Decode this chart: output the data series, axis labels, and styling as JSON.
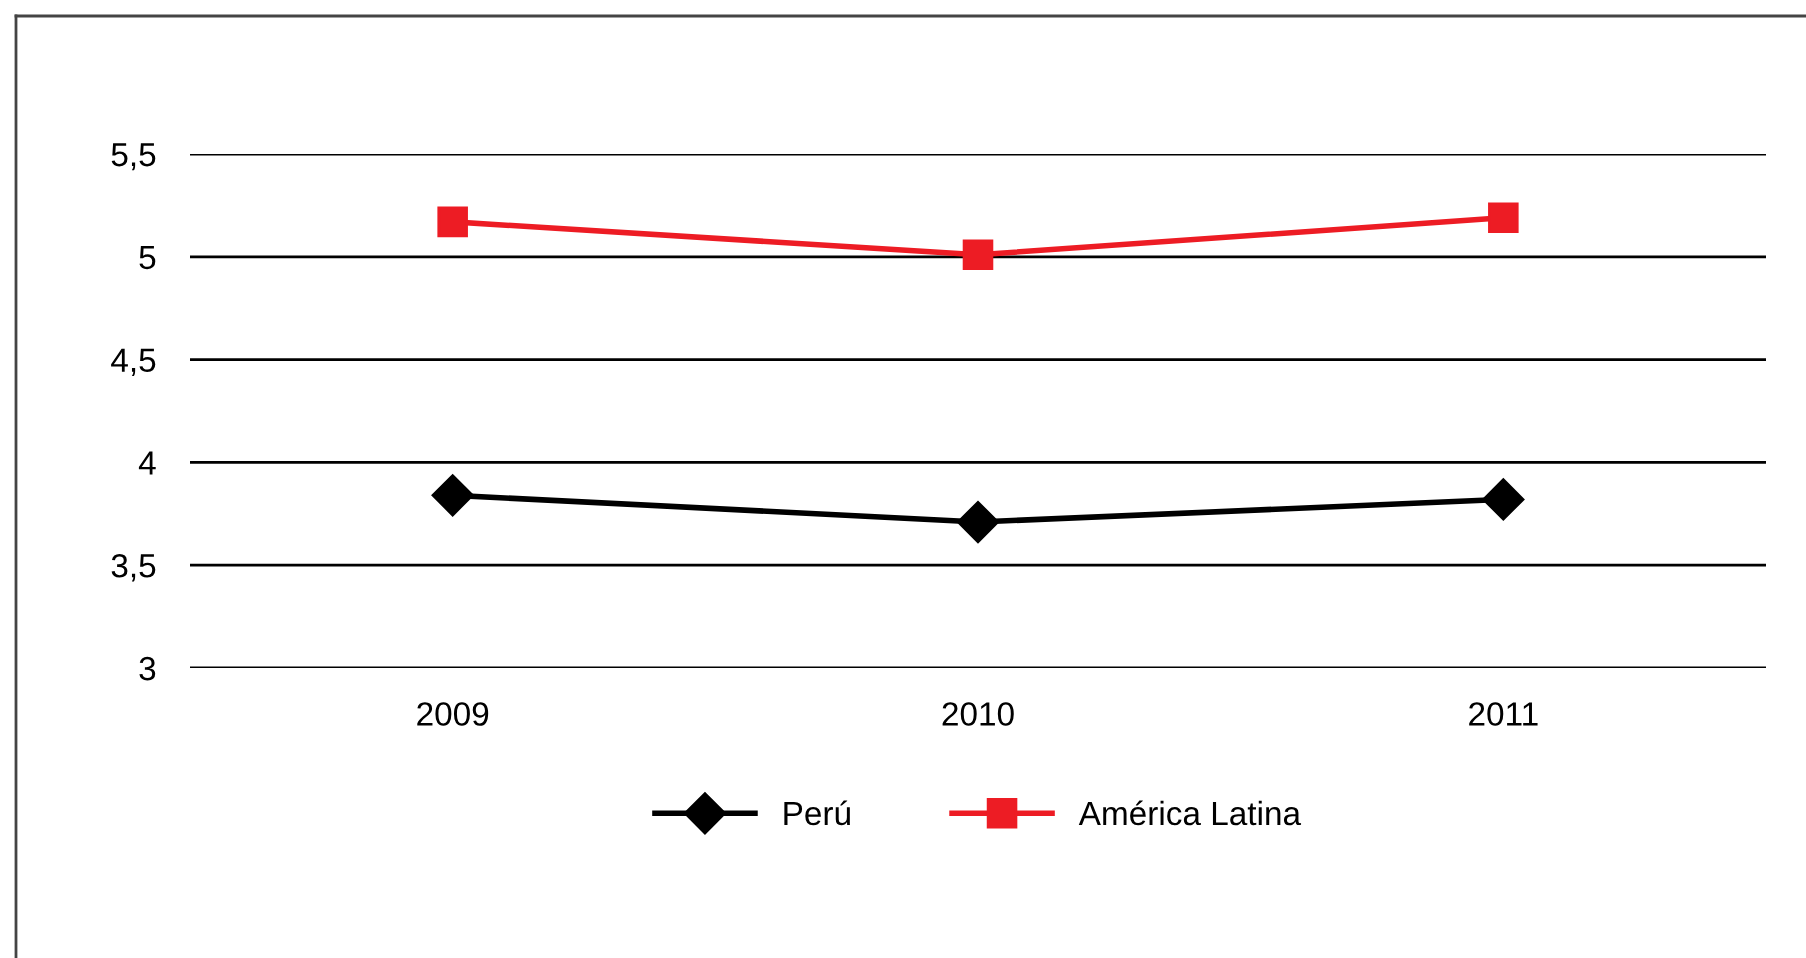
{
  "chart_data": {
    "type": "line",
    "categories": [
      "2009",
      "2010",
      "2011"
    ],
    "series": [
      {
        "name": "Perú",
        "color": "#000000",
        "values": [
          3.84,
          3.71,
          3.82
        ],
        "marker": "diamond"
      },
      {
        "name": "América Latina",
        "color": "#ed1c24",
        "values": [
          5.17,
          5.01,
          5.19
        ],
        "marker": "square"
      }
    ],
    "ylim": [
      3,
      5.5
    ],
    "yticks": [
      3,
      {
        "value": 3.5,
        "label": "3,5"
      },
      4,
      {
        "value": 4.5,
        "label": "4,5"
      },
      5,
      {
        "value": 5.5,
        "label": "5,5"
      }
    ],
    "grid": "y",
    "legend": "bottom",
    "line_style": "solid"
  }
}
